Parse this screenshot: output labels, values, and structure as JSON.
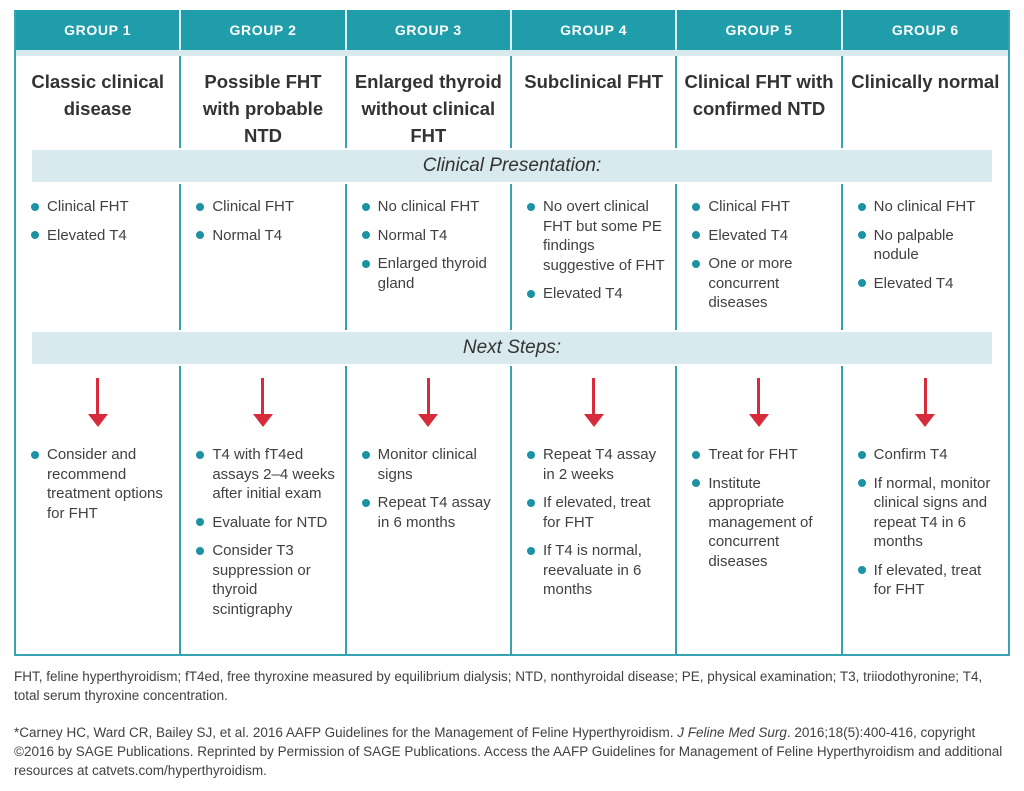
{
  "colors": {
    "header_teal": "#1f9daa",
    "divider_teal": "#35a3b1",
    "banner_light_teal": "#d9eaee",
    "bullet_teal": "#1b93a4",
    "arrow_red": "#d62b3a",
    "body_text": "#414042"
  },
  "banners": {
    "clinical_presentation": "Clinical Presentation:",
    "next_steps": "Next Steps:"
  },
  "groups": [
    {
      "header": "GROUP 1",
      "title": "Classic clinical disease",
      "presentation": [
        "Clinical FHT",
        "Elevated T4"
      ],
      "next_steps": [
        "Consider and recommend treatment options for FHT"
      ]
    },
    {
      "header": "GROUP 2",
      "title": "Possible FHT with probable NTD",
      "presentation": [
        "Clinical FHT",
        "Normal T4"
      ],
      "next_steps": [
        "T4 with fT4ed assays 2–4 weeks after initial exam",
        "Evaluate for NTD",
        "Consider T3 suppression or thyroid scintigraphy"
      ]
    },
    {
      "header": "GROUP 3",
      "title": "Enlarged thyroid without clinical FHT",
      "presentation": [
        "No clinical FHT",
        "Normal T4",
        "Enlarged thyroid gland"
      ],
      "next_steps": [
        "Monitor clinical signs",
        "Repeat T4 assay in 6 months"
      ]
    },
    {
      "header": "GROUP 4",
      "title": "Subclinical FHT",
      "presentation": [
        "No overt clinical FHT but some PE findings suggestive of FHT",
        "Elevated T4"
      ],
      "next_steps": [
        "Repeat T4 assay in 2 weeks",
        "If elevated, treat for FHT",
        "If T4 is normal, reevaluate in 6 months"
      ]
    },
    {
      "header": "GROUP 5",
      "title": "Clinical FHT with confirmed NTD",
      "presentation": [
        "Clinical FHT",
        "Elevated T4",
        "One or more concurrent diseases"
      ],
      "next_steps": [
        "Treat for FHT",
        "Institute appropriate management of concurrent diseases"
      ]
    },
    {
      "header": "GROUP 6",
      "title": "Clinically normal",
      "presentation": [
        "No clinical FHT",
        "No palpable nodule",
        "Elevated T4"
      ],
      "next_steps": [
        "Confirm T4",
        "If normal, monitor clinical signs and repeat T4 in 6 months",
        "If elevated, treat for FHT"
      ]
    }
  ],
  "footnotes": {
    "abbreviations": "FHT, feline hyperthyroidism; fT4ed, free thyroxine measured by equilibrium dialysis; NTD, nonthyroidal disease; PE, physical examination; T3, triiodothyronine; T4, total serum thyroxine concentration.",
    "citation_part1": "*Carney HC, Ward CR, Bailey SJ, et al. 2016 AAFP Guidelines for the Management of Feline Hyperthyroidism. ",
    "citation_journal": "J Feline Med Surg",
    "citation_part2": ". 2016;18(5):400-416, copyright ©2016 by SAGE Publications. Reprinted by Permission of SAGE Publications. Access the AAFP Guidelines for Management of Feline Hyperthyroidism and additional resources at catvets.com/hyperthyroidism."
  }
}
